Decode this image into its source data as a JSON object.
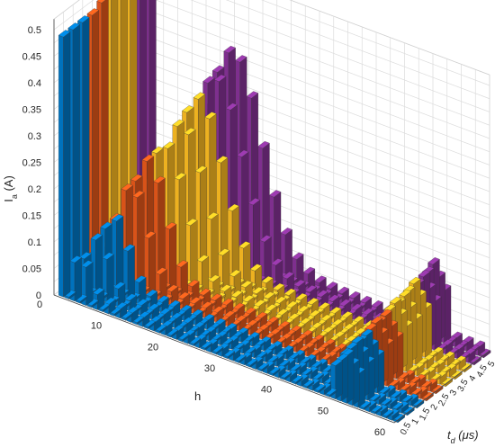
{
  "chart_data": {
    "type": "bar3d",
    "title": "",
    "xlabel": "h",
    "ylabel_main": "t",
    "ylabel_sub": "d",
    "ylabel_unit": " (μs)",
    "zlabel_main": "I",
    "zlabel_sub": "a",
    "zlabel_unit": " (A)",
    "h_ticks": [
      "0",
      "10",
      "20",
      "30",
      "40",
      "50",
      "60"
    ],
    "td_ticks": [
      "0.5",
      "1",
      "1.5",
      "2",
      "2.5",
      "3",
      "3.5",
      "4",
      "4.5",
      "5"
    ],
    "z_ticks": [
      "0",
      "0.05",
      "0.1",
      "0.15",
      "0.2",
      "0.25",
      "0.3",
      "0.35",
      "0.4",
      "0.45",
      "0.5"
    ],
    "zlim": [
      0,
      0.5
    ],
    "hlim": [
      0,
      60
    ],
    "grid": true,
    "colors": [
      "#0072bd",
      "#d95319",
      "#edb120",
      "#7e2f8e"
    ],
    "fundamental_values": [
      0.49,
      0.49,
      0.49,
      0.49,
      0.5,
      0.5,
      0.51,
      0.52,
      0.54,
      0.55
    ],
    "harmonic_peaks": [
      0.065,
      0.09,
      0.12,
      0.17,
      0.21,
      0.23,
      0.26,
      0.3,
      0.33,
      0.37
    ],
    "switching_band_values": [
      0.09,
      0.1,
      0.1,
      0.11,
      0.11,
      0.12,
      0.12,
      0.13,
      0.13,
      0.14
    ]
  }
}
